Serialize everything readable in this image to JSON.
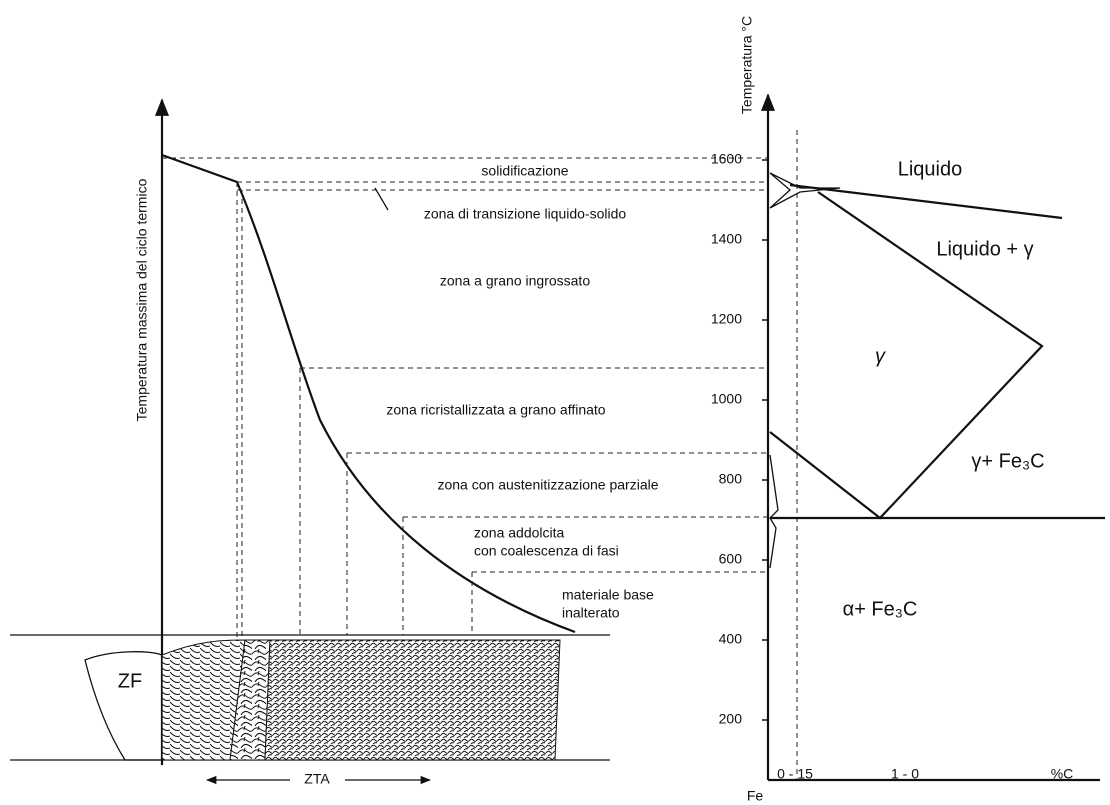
{
  "left": {
    "y_axis_label": "Temperatura massima del ciclo termico",
    "zones": [
      "solidificazione",
      "zona di transizione liquido-solido",
      "zona a grano ingrossato",
      "zona ricristallizzata a grano affinato",
      "zona con austenitizzazione parziale",
      "zona addolcita",
      "con coalescenza di fasi",
      "materiale base",
      "inalterato"
    ],
    "zf": "ZF",
    "zta": "ZTA"
  },
  "right": {
    "y_axis_label": "Temperatura °C",
    "yticks": [
      200,
      400,
      600,
      800,
      1000,
      1200,
      1400,
      1600
    ],
    "regions": [
      "Liquido",
      "Liquido + γ",
      "γ",
      "γ+ Fe₃C",
      "α+ Fe₃C"
    ],
    "x_labels": [
      "Fe",
      "0 - 15",
      "1 - 0",
      "%C"
    ]
  }
}
